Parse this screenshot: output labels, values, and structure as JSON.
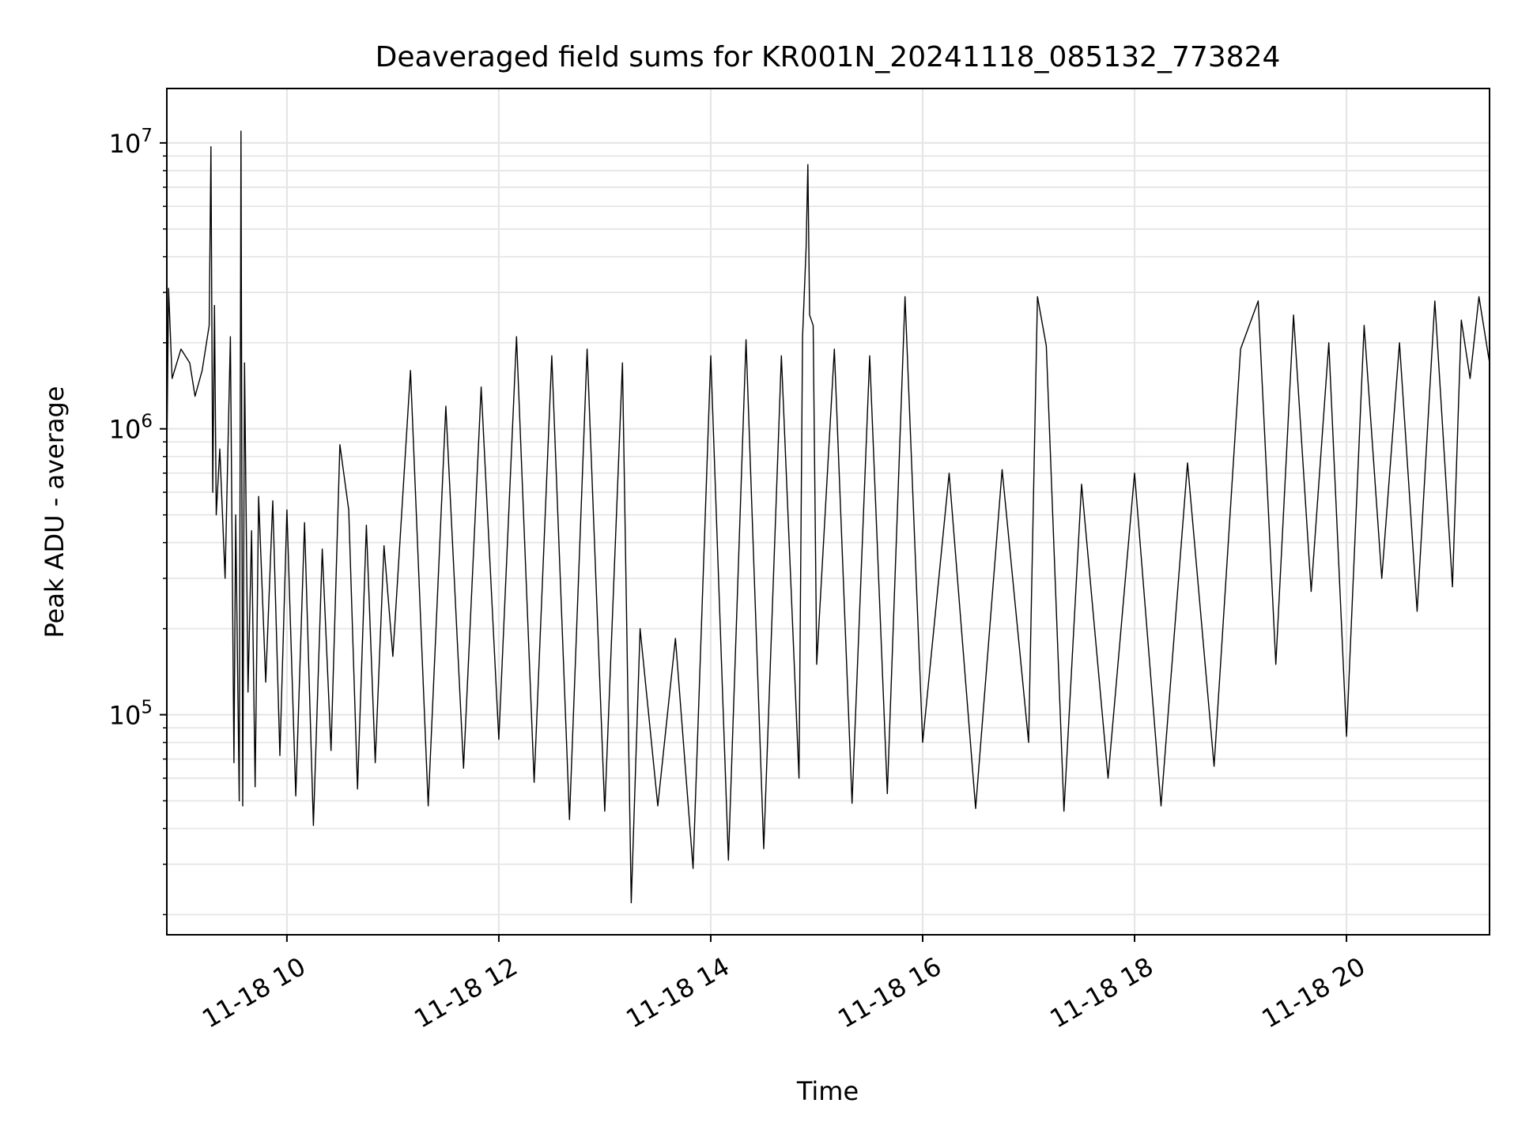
{
  "chart_data": {
    "type": "line",
    "title": "Deaveraged field sums for KR001N_20241118_085132_773824",
    "xlabel": "Time",
    "ylabel": "Peak ADU - average",
    "yscale": "log",
    "grid": true,
    "xlim": [
      "2024-11-18 08:52",
      "2024-11-18 21:21"
    ],
    "ylim": [
      17000,
      15500000
    ],
    "x_ticks": [
      {
        "value": "2024-11-18 10:00",
        "label": "11-18 10"
      },
      {
        "value": "2024-11-18 12:00",
        "label": "11-18 12"
      },
      {
        "value": "2024-11-18 14:00",
        "label": "11-18 14"
      },
      {
        "value": "2024-11-18 16:00",
        "label": "11-18 16"
      },
      {
        "value": "2024-11-18 18:00",
        "label": "11-18 18"
      },
      {
        "value": "2024-11-18 20:00",
        "label": "11-18 20"
      }
    ],
    "y_ticks": [
      {
        "value": 100000,
        "base": "10",
        "exp": "5"
      },
      {
        "value": 1000000,
        "base": "10",
        "exp": "6"
      },
      {
        "value": 10000000,
        "base": "10",
        "exp": "7"
      }
    ],
    "line_color": "#000000",
    "series": [
      {
        "x": [
          "2024-11-18 08:52",
          "2024-11-18 08:53",
          "2024-11-18 08:55",
          "2024-11-18 09:00",
          "2024-11-18 09:05",
          "2024-11-18 09:08",
          "2024-11-18 09:12",
          "2024-11-18 09:16",
          "2024-11-18 09:17",
          "2024-11-18 09:18",
          "2024-11-18 09:19",
          "2024-11-18 09:20",
          "2024-11-18 09:22",
          "2024-11-18 09:25",
          "2024-11-18 09:28",
          "2024-11-18 09:30",
          "2024-11-18 09:31",
          "2024-11-18 09:33",
          "2024-11-18 09:34",
          "2024-11-18 09:35",
          "2024-11-18 09:36",
          "2024-11-18 09:38",
          "2024-11-18 09:40",
          "2024-11-18 09:42",
          "2024-11-18 09:44",
          "2024-11-18 09:48",
          "2024-11-18 09:52",
          "2024-11-18 09:56",
          "2024-11-18 10:00",
          "2024-11-18 10:05",
          "2024-11-18 10:10",
          "2024-11-18 10:15",
          "2024-11-18 10:20",
          "2024-11-18 10:25",
          "2024-11-18 10:30",
          "2024-11-18 10:35",
          "2024-11-18 10:40",
          "2024-11-18 10:45",
          "2024-11-18 10:50",
          "2024-11-18 10:55",
          "2024-11-18 11:00",
          "2024-11-18 11:10",
          "2024-11-18 11:20",
          "2024-11-18 11:30",
          "2024-11-18 11:40",
          "2024-11-18 11:50",
          "2024-11-18 12:00",
          "2024-11-18 12:10",
          "2024-11-18 12:20",
          "2024-11-18 12:30",
          "2024-11-18 12:40",
          "2024-11-18 12:50",
          "2024-11-18 13:00",
          "2024-11-18 13:10",
          "2024-11-18 13:15",
          "2024-11-18 13:20",
          "2024-11-18 13:30",
          "2024-11-18 13:40",
          "2024-11-18 13:50",
          "2024-11-18 14:00",
          "2024-11-18 14:10",
          "2024-11-18 14:20",
          "2024-11-18 14:30",
          "2024-11-18 14:40",
          "2024-11-18 14:50",
          "2024-11-18 14:52",
          "2024-11-18 14:54",
          "2024-11-18 14:55",
          "2024-11-18 14:56",
          "2024-11-18 14:58",
          "2024-11-18 15:00",
          "2024-11-18 15:10",
          "2024-11-18 15:20",
          "2024-11-18 15:30",
          "2024-11-18 15:40",
          "2024-11-18 15:50",
          "2024-11-18 16:00",
          "2024-11-18 16:15",
          "2024-11-18 16:30",
          "2024-11-18 16:45",
          "2024-11-18 17:00",
          "2024-11-18 17:05",
          "2024-11-18 17:10",
          "2024-11-18 17:20",
          "2024-11-18 17:30",
          "2024-11-18 17:45",
          "2024-11-18 18:00",
          "2024-11-18 18:15",
          "2024-11-18 18:30",
          "2024-11-18 18:45",
          "2024-11-18 19:00",
          "2024-11-18 19:10",
          "2024-11-18 19:20",
          "2024-11-18 19:30",
          "2024-11-18 19:40",
          "2024-11-18 19:50",
          "2024-11-18 20:00",
          "2024-11-18 20:10",
          "2024-11-18 20:20",
          "2024-11-18 20:30",
          "2024-11-18 20:40",
          "2024-11-18 20:50",
          "2024-11-18 21:00",
          "2024-11-18 21:05",
          "2024-11-18 21:10",
          "2024-11-18 21:15",
          "2024-11-18 21:21"
        ],
        "y": [
          800000,
          3100000,
          1500000,
          1900000,
          1700000,
          1300000,
          1600000,
          2300000,
          9700000,
          600000,
          2700000,
          500000,
          850000,
          300000,
          2100000,
          68000,
          500000,
          50000,
          11000000,
          48000,
          1700000,
          120000,
          440000,
          56000,
          580000,
          130000,
          560000,
          72000,
          520000,
          52000,
          470000,
          41000,
          380000,
          75000,
          880000,
          520000,
          55000,
          460000,
          68000,
          390000,
          160000,
          1600000,
          48000,
          1200000,
          65000,
          1400000,
          82000,
          2100000,
          58000,
          1800000,
          43000,
          1900000,
          46000,
          1700000,
          22000,
          200000,
          48000,
          185000,
          29000,
          1800000,
          31000,
          2050000,
          34000,
          1800000,
          60000,
          2100000,
          4300000,
          8400000,
          2500000,
          2300000,
          150000,
          1900000,
          49000,
          1800000,
          53000,
          2900000,
          80000,
          700000,
          47000,
          720000,
          80000,
          2900000,
          1950000,
          46000,
          640000,
          60000,
          700000,
          48000,
          760000,
          66000,
          1900000,
          2800000,
          150000,
          2500000,
          270000,
          2000000,
          84000,
          2300000,
          300000,
          2000000,
          230000,
          2800000,
          280000,
          2400000,
          1500000,
          2900000,
          1700000
        ]
      }
    ]
  }
}
